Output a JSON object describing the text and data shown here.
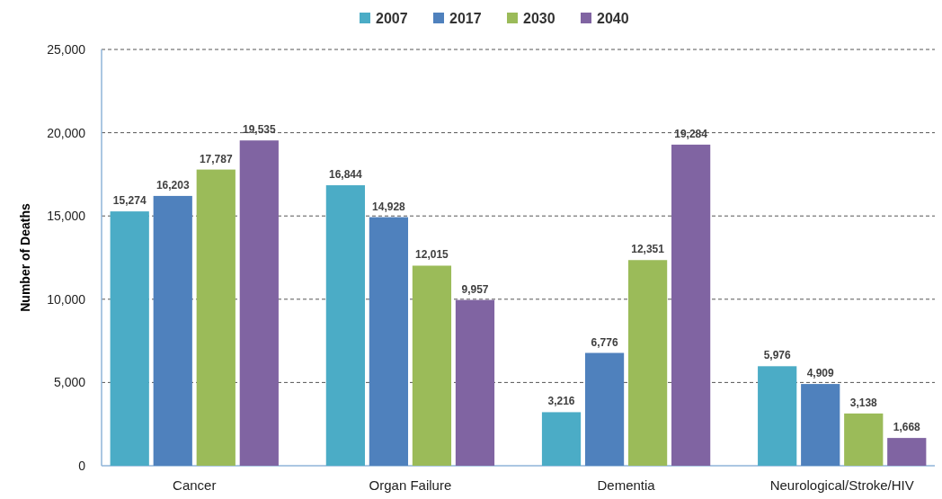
{
  "chart_data": {
    "type": "bar",
    "ylabel": "Number of Deaths",
    "categories": [
      "Cancer",
      "Organ Failure",
      "Dementia",
      "Neurological/Stroke/HIV"
    ],
    "series": [
      {
        "name": "2007",
        "color": "#4bacc6",
        "values": [
          15274,
          16844,
          3216,
          5976
        ],
        "value_labels": [
          "15,274",
          "16,844",
          "3,216",
          "5,976"
        ]
      },
      {
        "name": "2017",
        "color": "#4f81bd",
        "values": [
          16203,
          14928,
          6776,
          4909
        ],
        "value_labels": [
          "16,203",
          "14,928",
          "6,776",
          "4,909"
        ]
      },
      {
        "name": "2030",
        "color": "#9bbb59",
        "values": [
          17787,
          12015,
          12351,
          3138
        ],
        "value_labels": [
          "17,787",
          "12,015",
          "12,351",
          "3,138"
        ]
      },
      {
        "name": "2040",
        "color": "#8064a2",
        "values": [
          19535,
          9957,
          19284,
          1668
        ],
        "value_labels": [
          "19,535",
          "9,957",
          "19,284",
          "1,668"
        ]
      }
    ],
    "ylim": [
      0,
      25000
    ],
    "yticks": [
      {
        "value": 0,
        "label": "0"
      },
      {
        "value": 5000,
        "label": "5,000"
      },
      {
        "value": 10000,
        "label": "10,000"
      },
      {
        "value": 15000,
        "label": "15,000"
      },
      {
        "value": 20000,
        "label": "20,000"
      },
      {
        "value": 25000,
        "label": "25,000"
      }
    ],
    "grid": "y",
    "legend": "top"
  }
}
